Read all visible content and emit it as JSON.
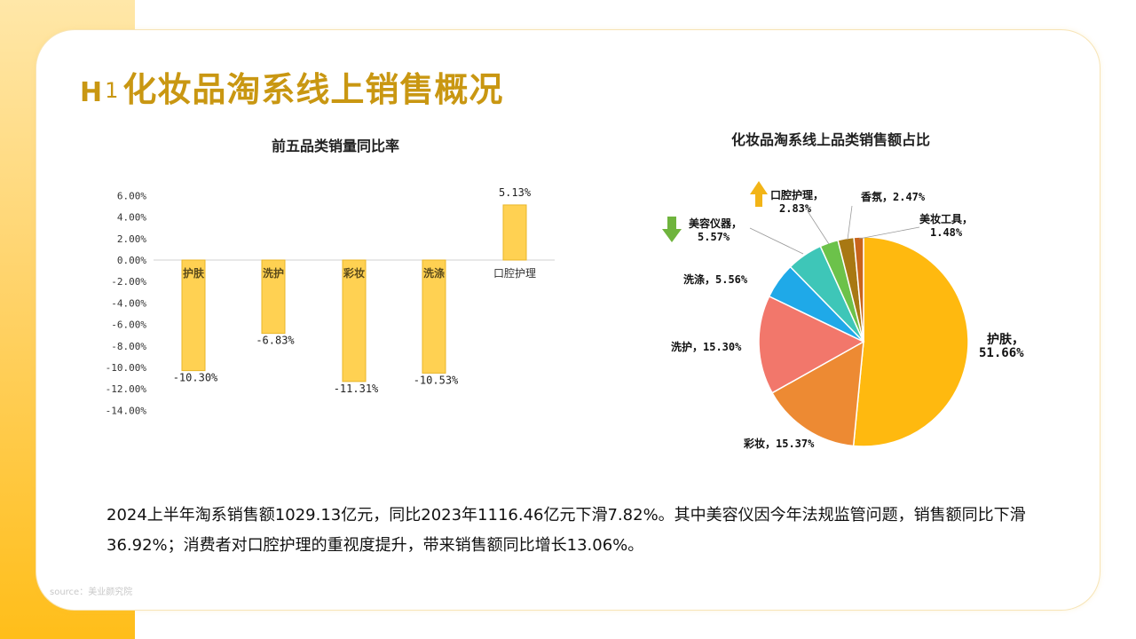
{
  "header": {
    "title_prefix": "H",
    "title_sup": "1",
    "title_main": "化妆品淘系线上销售概况"
  },
  "colors": {
    "accent": "#c99712",
    "bar_fill": "#ffd152",
    "bar_stroke": "#e8b628",
    "arrow_up": "#f2b417",
    "arrow_down": "#6fb43d"
  },
  "chart_data": [
    {
      "type": "bar",
      "title": "前五品类销量同比率",
      "categories": [
        "护肤",
        "洗护",
        "彩妆",
        "洗涤",
        "口腔护理"
      ],
      "values": [
        -10.3,
        -6.83,
        -11.31,
        -10.53,
        5.13
      ],
      "value_labels": [
        "-10.30%",
        "-6.83%",
        "-11.31%",
        "-10.53%",
        "5.13%"
      ],
      "ylim": [
        -14,
        6
      ],
      "yticks": [
        6,
        4,
        2,
        0,
        -2,
        -4,
        -6,
        -8,
        -10,
        -12,
        -14
      ],
      "ytick_labels": [
        "6.00%",
        "4.00%",
        "2.00%",
        "0.00%",
        "-2.00%",
        "-4.00%",
        "-6.00%",
        "-8.00%",
        "-10.00%",
        "-12.00%",
        "-14.00%"
      ],
      "grid": false
    },
    {
      "type": "pie",
      "title": "化妆品淘系线上品类销售额占比",
      "labels": [
        "护肤",
        "彩妆",
        "洗护",
        "洗涤",
        "美容仪器",
        "口腔护理",
        "香氛",
        "美妆工具"
      ],
      "values": [
        51.66,
        15.37,
        15.3,
        5.56,
        5.57,
        2.83,
        2.47,
        1.48
      ],
      "value_labels": [
        "51.66%",
        "15.37%",
        "15.30%",
        "5.56%",
        "5.57%",
        "2.83%",
        "2.47%",
        "1.48%"
      ],
      "colors": [
        "#ffb90f",
        "#ed8a33",
        "#f2776b",
        "#1fa9e8",
        "#3ec6b8",
        "#6cc24a",
        "#a87813",
        "#c8641c"
      ],
      "annotations": {
        "美容仪器": "down-arrow",
        "口腔护理": "up-arrow"
      }
    }
  ],
  "summary": "2024上半年淘系销售额1029.13亿元，同比2023年1116.46亿元下滑7.82%。其中美容仪因今年法规监管问题，销售额同比下滑36.92%；消费者对口腔护理的重视度提升，带来销售额同比增长13.06%。",
  "source": "source：美业颜究院"
}
